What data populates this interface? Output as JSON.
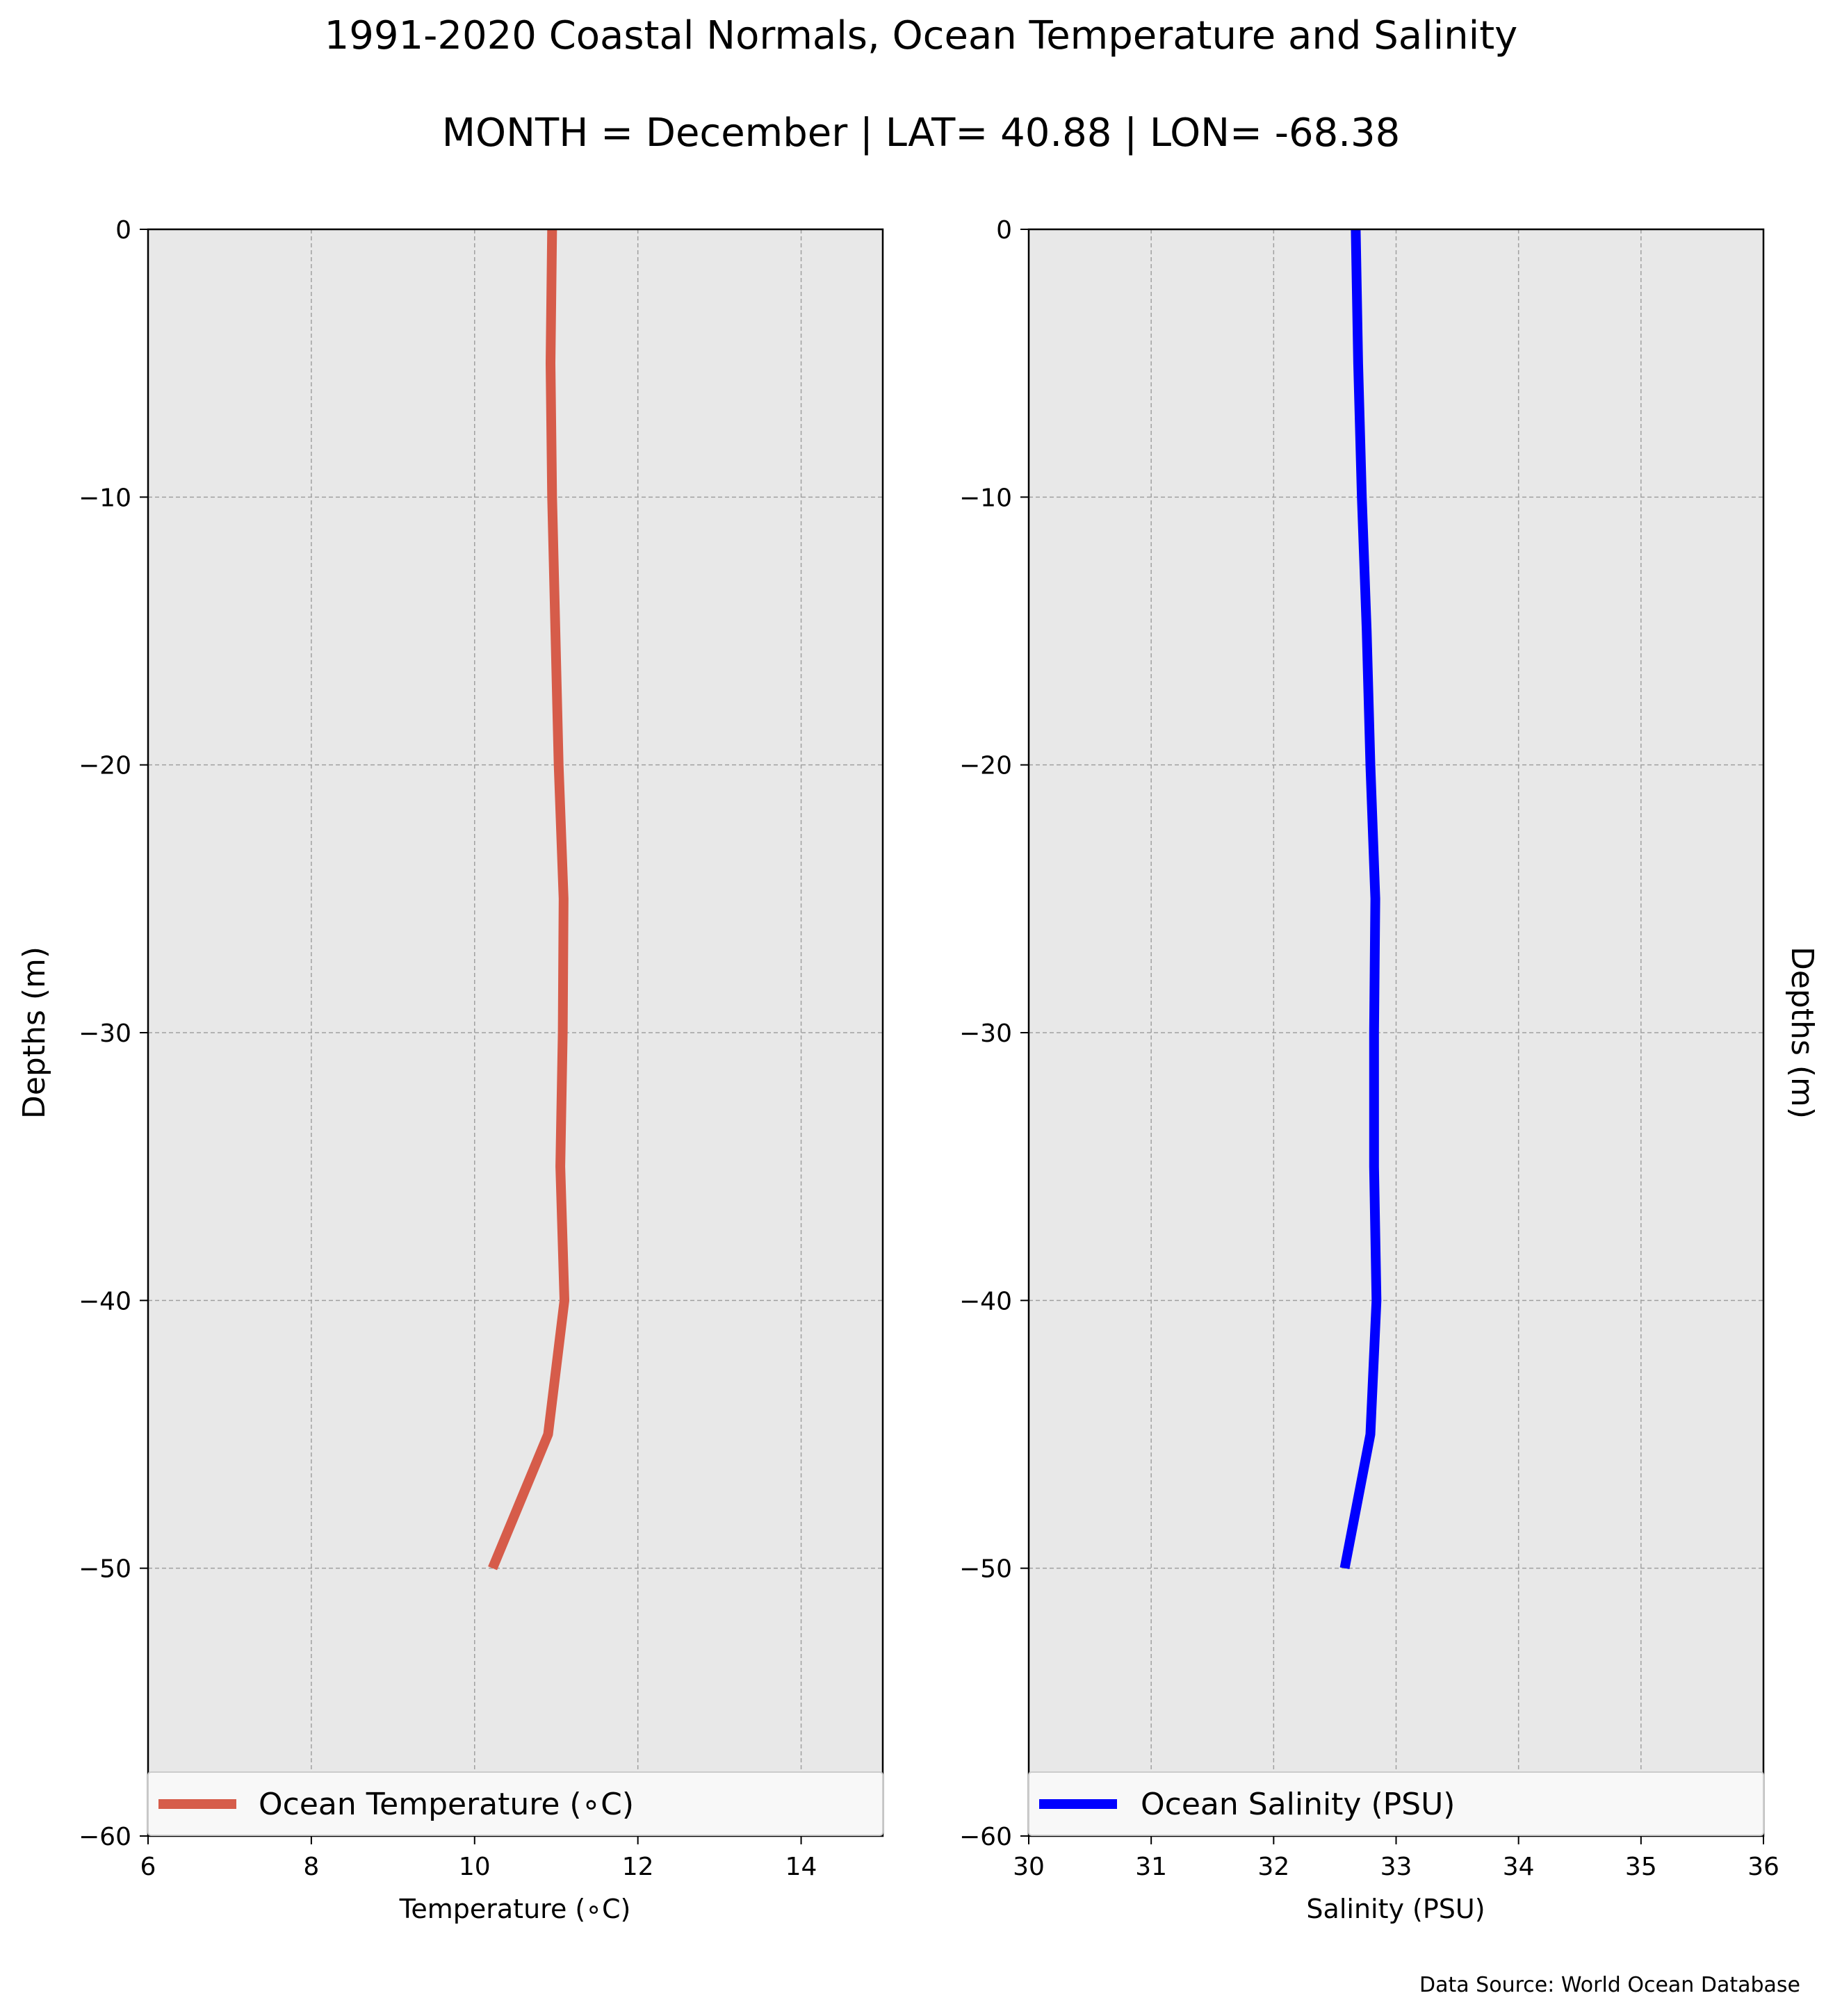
{
  "figure": {
    "title": "1991-2020 Coastal Normals, Ocean Temperature and Salinity",
    "subtitle": "MONTH = December | LAT= 40.88 | LON= -68.38",
    "source": "Data Source: World Ocean Database"
  },
  "chart_data": [
    {
      "type": "line",
      "orientation": "profile (x = value, y = depth)",
      "xlabel": "Temperature (∘C)",
      "ylabel": "Depths (m)",
      "xlim": [
        6,
        15
      ],
      "ylim": [
        -60,
        0
      ],
      "xticks": [
        6,
        8,
        10,
        12,
        14
      ],
      "yticks": [
        0,
        -10,
        -20,
        -30,
        -40,
        -50,
        -60
      ],
      "grid": true,
      "legend_position": "lower center",
      "background": "#e8e8e8",
      "series": [
        {
          "name": "Ocean Temperature (∘C)",
          "color": "#d65c4a",
          "points": [
            {
              "x": 10.95,
              "y": 0
            },
            {
              "x": 10.93,
              "y": -5
            },
            {
              "x": 10.95,
              "y": -10
            },
            {
              "x": 10.99,
              "y": -15
            },
            {
              "x": 11.03,
              "y": -20
            },
            {
              "x": 11.09,
              "y": -25
            },
            {
              "x": 11.08,
              "y": -30
            },
            {
              "x": 11.05,
              "y": -35
            },
            {
              "x": 11.1,
              "y": -40
            },
            {
              "x": 10.9,
              "y": -45
            },
            {
              "x": 10.22,
              "y": -50
            }
          ]
        }
      ]
    },
    {
      "type": "line",
      "orientation": "profile (x = value, y = depth)",
      "xlabel": "Salinity (PSU)",
      "ylabel": "Depths (m)",
      "xlim": [
        30,
        36
      ],
      "ylim": [
        -60,
        0
      ],
      "xticks": [
        30,
        31,
        32,
        33,
        34,
        35,
        36
      ],
      "yticks": [
        0,
        -10,
        -20,
        -30,
        -40,
        -50,
        -60
      ],
      "grid": true,
      "legend_position": "lower center",
      "background": "#e8e8e8",
      "series": [
        {
          "name": "Ocean Salinity (PSU)",
          "color": "#0000ff",
          "points": [
            {
              "x": 32.67,
              "y": 0
            },
            {
              "x": 32.69,
              "y": -5
            },
            {
              "x": 32.72,
              "y": -10
            },
            {
              "x": 32.76,
              "y": -15
            },
            {
              "x": 32.79,
              "y": -20
            },
            {
              "x": 32.83,
              "y": -25
            },
            {
              "x": 32.82,
              "y": -30
            },
            {
              "x": 32.82,
              "y": -35
            },
            {
              "x": 32.84,
              "y": -40
            },
            {
              "x": 32.79,
              "y": -45
            },
            {
              "x": 32.58,
              "y": -50
            }
          ]
        }
      ]
    }
  ]
}
